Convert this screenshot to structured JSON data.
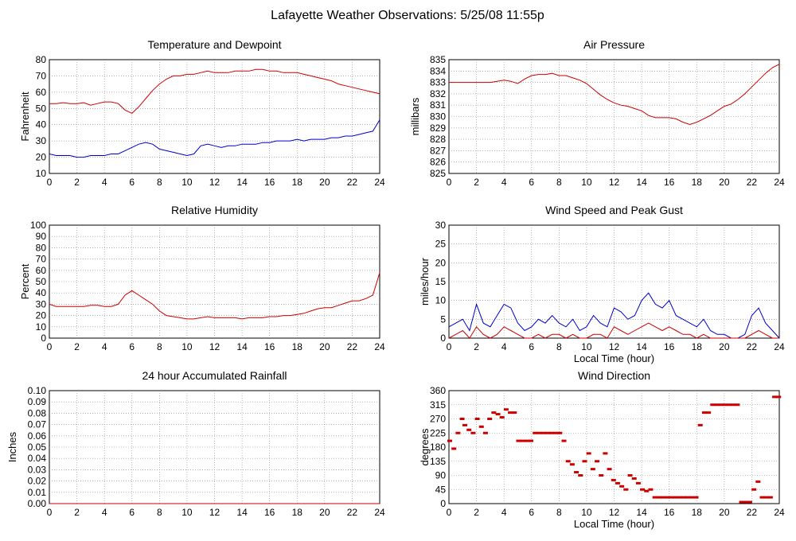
{
  "page_title": "Lafayette Weather Observations: 5/25/08 11:55p",
  "chart_data": [
    {
      "id": "temp",
      "type": "line",
      "title": "Temperature and Dewpoint",
      "xlabel": "",
      "ylabel": "Fahrenheit",
      "xlim": [
        0,
        24
      ],
      "ylim": [
        10,
        80
      ],
      "xticks": [
        0,
        2,
        4,
        6,
        8,
        10,
        12,
        14,
        16,
        18,
        20,
        22,
        24
      ],
      "yticks": [
        10,
        20,
        30,
        40,
        50,
        60,
        70,
        80
      ],
      "grid": true,
      "series": [
        {
          "color": "#cc0000",
          "x": [
            0,
            0.5,
            1,
            1.5,
            2,
            2.5,
            3,
            3.5,
            4,
            4.5,
            5,
            5.5,
            6,
            6.5,
            7,
            7.5,
            8,
            8.5,
            9,
            9.5,
            10,
            10.5,
            11,
            11.5,
            12,
            12.5,
            13,
            13.5,
            14,
            14.5,
            15,
            15.5,
            16,
            16.5,
            17,
            17.5,
            18,
            18.5,
            19,
            19.5,
            20,
            20.5,
            21,
            21.5,
            22,
            22.5,
            23,
            23.5,
            24
          ],
          "y": [
            53,
            53,
            53.5,
            53,
            53,
            53.5,
            52,
            53,
            54,
            54,
            53,
            49,
            47,
            51,
            56,
            61,
            65,
            68,
            70,
            70,
            71,
            71,
            72,
            73,
            72,
            72,
            72,
            73,
            73,
            73,
            74,
            74,
            73,
            73,
            72,
            72,
            72,
            71,
            70,
            69,
            68,
            67,
            65,
            64,
            63,
            62,
            61,
            60,
            59
          ]
        },
        {
          "color": "#0000cc",
          "x": [
            0,
            0.5,
            1,
            1.5,
            2,
            2.5,
            3,
            3.5,
            4,
            4.5,
            5,
            5.5,
            6,
            6.5,
            7,
            7.5,
            8,
            8.5,
            9,
            9.5,
            10,
            10.5,
            11,
            11.5,
            12,
            12.5,
            13,
            13.5,
            14,
            14.5,
            15,
            15.5,
            16,
            16.5,
            17,
            17.5,
            18,
            18.5,
            19,
            19.5,
            20,
            20.5,
            21,
            21.5,
            22,
            22.5,
            23,
            23.5,
            24
          ],
          "y": [
            22,
            21,
            21,
            21,
            20,
            20,
            21,
            21,
            21,
            22,
            22,
            24,
            26,
            28,
            29,
            28,
            25,
            24,
            23,
            22,
            21,
            22,
            27,
            28,
            27,
            26,
            27,
            27,
            28,
            28,
            28,
            29,
            29,
            30,
            30,
            30,
            31,
            30,
            31,
            31,
            31,
            32,
            32,
            33,
            33,
            34,
            35,
            36,
            43
          ]
        }
      ]
    },
    {
      "id": "pressure",
      "type": "line",
      "title": "Air Pressure",
      "xlabel": "",
      "ylabel": "millibars",
      "xlim": [
        0,
        24
      ],
      "ylim": [
        825,
        835
      ],
      "xticks": [
        0,
        2,
        4,
        6,
        8,
        10,
        12,
        14,
        16,
        18,
        20,
        22,
        24
      ],
      "yticks": [
        825,
        826,
        827,
        828,
        829,
        830,
        831,
        832,
        833,
        834,
        835
      ],
      "grid": true,
      "series": [
        {
          "color": "#cc0000",
          "x": [
            0,
            1,
            2,
            3,
            4,
            4.5,
            5,
            5.5,
            6,
            6.5,
            7,
            7.5,
            8,
            8.5,
            9,
            9.5,
            10,
            10.5,
            11,
            11.5,
            12,
            12.5,
            13,
            13.5,
            14,
            14.5,
            15,
            15.5,
            16,
            16.5,
            17,
            17.5,
            18,
            18.5,
            19,
            19.5,
            20,
            20.5,
            21,
            21.5,
            22,
            22.5,
            23,
            23.5,
            24
          ],
          "y": [
            833,
            833,
            833,
            833,
            833.2,
            833.1,
            832.9,
            833.3,
            833.6,
            833.7,
            833.7,
            833.8,
            833.6,
            833.6,
            833.4,
            833.2,
            832.9,
            832.4,
            831.9,
            831.5,
            831.2,
            831.0,
            830.9,
            830.7,
            830.5,
            830.1,
            829.9,
            829.9,
            829.9,
            829.8,
            829.5,
            829.3,
            829.5,
            829.8,
            830.1,
            830.5,
            830.9,
            831.1,
            831.5,
            832.0,
            832.6,
            833.2,
            833.8,
            834.3,
            834.6
          ]
        }
      ]
    },
    {
      "id": "humidity",
      "type": "line",
      "title": "Relative Humidity",
      "xlabel": "",
      "ylabel": "Percent",
      "xlim": [
        0,
        24
      ],
      "ylim": [
        0,
        100
      ],
      "xticks": [
        0,
        2,
        4,
        6,
        8,
        10,
        12,
        14,
        16,
        18,
        20,
        22,
        24
      ],
      "yticks": [
        0,
        10,
        20,
        30,
        40,
        50,
        60,
        70,
        80,
        90,
        100
      ],
      "grid": true,
      "series": [
        {
          "color": "#cc0000",
          "x": [
            0,
            0.5,
            1,
            1.5,
            2,
            2.5,
            3,
            3.5,
            4,
            4.5,
            5,
            5.5,
            6,
            6.5,
            7,
            7.5,
            8,
            8.5,
            9,
            9.5,
            10,
            10.5,
            11,
            11.5,
            12,
            12.5,
            13,
            13.5,
            14,
            14.5,
            15,
            15.5,
            16,
            16.5,
            17,
            17.5,
            18,
            18.5,
            19,
            19.5,
            20,
            20.5,
            21,
            21.5,
            22,
            22.5,
            23,
            23.5,
            24
          ],
          "y": [
            30,
            28,
            28,
            28,
            28,
            28,
            29,
            29,
            28,
            28,
            30,
            38,
            42,
            38,
            34,
            30,
            24,
            20,
            19,
            18,
            17,
            17,
            18,
            19,
            18,
            18,
            18,
            18,
            17,
            18,
            18,
            18,
            19,
            19,
            20,
            20,
            21,
            22,
            24,
            26,
            27,
            27,
            29,
            31,
            33,
            33,
            35,
            38,
            58
          ]
        }
      ]
    },
    {
      "id": "wind",
      "type": "line",
      "title": "Wind Speed and Peak Gust",
      "xlabel": "Local Time (hour)",
      "ylabel": "miles/hour",
      "xlim": [
        0,
        24
      ],
      "ylim": [
        0,
        30
      ],
      "xticks": [
        0,
        2,
        4,
        6,
        8,
        10,
        12,
        14,
        16,
        18,
        20,
        22,
        24
      ],
      "yticks": [
        0,
        5,
        10,
        15,
        20,
        25,
        30
      ],
      "grid": true,
      "series": [
        {
          "color": "#0000cc",
          "x": [
            0,
            0.5,
            1,
            1.5,
            2,
            2.5,
            3,
            3.5,
            4,
            4.5,
            5,
            5.5,
            6,
            6.5,
            7,
            7.5,
            8,
            8.5,
            9,
            9.5,
            10,
            10.5,
            11,
            11.5,
            12,
            12.5,
            13,
            13.5,
            14,
            14.5,
            15,
            15.5,
            16,
            16.5,
            17,
            17.5,
            18,
            18.5,
            19,
            19.5,
            20,
            20.5,
            21,
            21.5,
            22,
            22.5,
            23,
            23.5,
            24
          ],
          "y": [
            3,
            4,
            5,
            2,
            9,
            4,
            3,
            6,
            9,
            8,
            4,
            2,
            3,
            5,
            4,
            6,
            4,
            3,
            5,
            2,
            3,
            6,
            4,
            3,
            8,
            7,
            5,
            6,
            10,
            12,
            9,
            8,
            10,
            6,
            5,
            4,
            3,
            5,
            2,
            1,
            1,
            0,
            0,
            1,
            6,
            8,
            4,
            2,
            0
          ]
        },
        {
          "color": "#cc0000",
          "x": [
            0,
            0.5,
            1,
            1.5,
            2,
            2.5,
            3,
            3.5,
            4,
            4.5,
            5,
            5.5,
            6,
            6.5,
            7,
            7.5,
            8,
            8.5,
            9,
            9.5,
            10,
            10.5,
            11,
            11.5,
            12,
            12.5,
            13,
            13.5,
            14,
            14.5,
            15,
            15.5,
            16,
            16.5,
            17,
            17.5,
            18,
            18.5,
            19,
            19.5,
            20,
            20.5,
            21,
            21.5,
            22,
            22.5,
            23,
            23.5,
            24
          ],
          "y": [
            0,
            1,
            2,
            0,
            3,
            1,
            0,
            1,
            3,
            2,
            1,
            0,
            0,
            1,
            0,
            1,
            1,
            0,
            1,
            0,
            0,
            1,
            1,
            0,
            3,
            2,
            1,
            2,
            3,
            4,
            3,
            2,
            3,
            2,
            1,
            1,
            0,
            1,
            0,
            0,
            0,
            0,
            0,
            0,
            1,
            2,
            1,
            0,
            0
          ]
        }
      ]
    },
    {
      "id": "rain",
      "type": "line",
      "title": "24 hour Accumulated Rainfall",
      "xlabel": "",
      "ylabel": "Inches",
      "xlim": [
        0,
        24
      ],
      "ylim": [
        0,
        0.1
      ],
      "xticks": [
        0,
        2,
        4,
        6,
        8,
        10,
        12,
        14,
        16,
        18,
        20,
        22,
        24
      ],
      "yticks": [
        "0.00",
        "0.01",
        "0.02",
        "0.03",
        "0.04",
        "0.05",
        "0.06",
        "0.07",
        "0.08",
        "0.09",
        "0.10"
      ],
      "grid": true,
      "series": [
        {
          "color": "#cc0000",
          "x": [
            0,
            24
          ],
          "y": [
            0,
            0
          ]
        }
      ]
    },
    {
      "id": "direction",
      "type": "scatter",
      "title": "Wind Direction",
      "xlabel": "Local Time (hour)",
      "ylabel": "degrees",
      "xlim": [
        0,
        24
      ],
      "ylim": [
        0,
        360
      ],
      "xticks": [
        0,
        2,
        4,
        6,
        8,
        10,
        12,
        14,
        16,
        18,
        20,
        22,
        24
      ],
      "yticks": [
        0,
        45,
        90,
        135,
        180,
        225,
        270,
        315,
        360
      ],
      "grid": true,
      "series": [
        {
          "color": "#cc0000",
          "x": [
            0,
            0.3,
            0.6,
            0.9,
            1.1,
            1.4,
            1.7,
            2.0,
            2.3,
            2.6,
            2.9,
            3.2,
            3.5,
            3.8,
            4.1,
            4.4,
            4.7,
            5.0,
            5.3,
            5.6,
            5.9,
            6.2,
            6.5,
            6.8,
            7.1,
            7.4,
            7.7,
            8.0,
            8.3,
            8.6,
            8.9,
            9.2,
            9.5,
            9.8,
            10.1,
            10.4,
            10.7,
            11.0,
            11.3,
            11.6,
            11.9,
            12.2,
            12.5,
            12.8,
            13.1,
            13.4,
            13.7,
            14.0,
            14.3,
            14.6,
            14.9,
            15.2,
            15.5,
            15.8,
            16.1,
            16.4,
            16.7,
            17.0,
            17.3,
            17.6,
            17.9,
            18.2,
            18.5,
            18.8,
            19.1,
            19.4,
            19.7,
            20.0,
            20.3,
            20.6,
            20.9,
            21.2,
            21.5,
            21.8,
            22.1,
            22.4,
            22.7,
            23.0,
            23.3,
            23.6,
            23.9
          ],
          "y": [
            200,
            175,
            225,
            270,
            250,
            235,
            225,
            270,
            245,
            225,
            270,
            290,
            285,
            275,
            300,
            290,
            290,
            200,
            200,
            200,
            200,
            225,
            225,
            225,
            225,
            225,
            225,
            225,
            200,
            135,
            125,
            100,
            90,
            135,
            160,
            110,
            135,
            90,
            160,
            110,
            75,
            65,
            55,
            45,
            90,
            80,
            65,
            45,
            40,
            45,
            20,
            20,
            20,
            20,
            20,
            20,
            20,
            20,
            20,
            20,
            20,
            250,
            290,
            290,
            315,
            315,
            315,
            315,
            315,
            315,
            315,
            5,
            5,
            5,
            45,
            70,
            20,
            20,
            20,
            340,
            340
          ]
        }
      ]
    }
  ]
}
